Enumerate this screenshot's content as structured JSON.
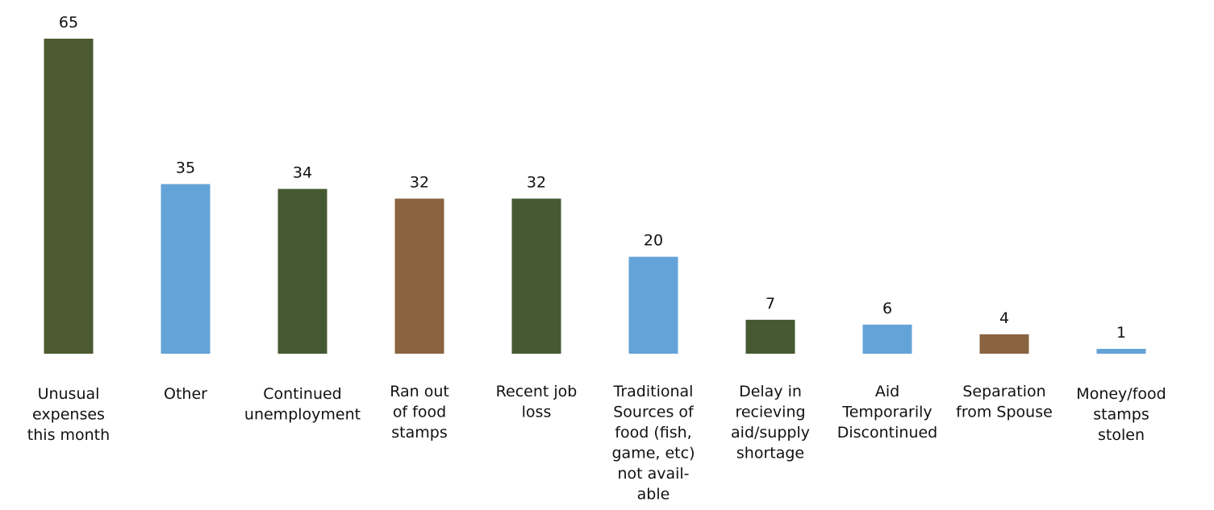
{
  "chart_data": {
    "type": "bar",
    "title": "",
    "xlabel": "",
    "ylabel": "",
    "ylim": [
      0,
      65
    ],
    "grid": false,
    "legend": "none",
    "categories": [
      "Unusual expenses this month",
      "Other",
      "Continued unemployment",
      "Ran out of food stamps",
      "Recent job loss",
      "Traditional Sources of food (fish, game, etc) not avail-able",
      "Delay in recieving aid/supply shortage",
      "Aid Temporarily Discontinued",
      "Separation from Spouse",
      "Money/food stamps stolen"
    ],
    "category_label_lines": [
      [
        "Unusual",
        "expenses",
        "this month"
      ],
      [
        "Other"
      ],
      [
        "Continued",
        "unemployment"
      ],
      [
        "Ran out",
        "of food",
        "stamps"
      ],
      [
        "Recent job",
        "loss"
      ],
      [
        "Traditional",
        "Sources of",
        "food (fish,",
        "game, etc)",
        "not avail-",
        "able"
      ],
      [
        "Delay in",
        "recieving",
        "aid/supply",
        "shortage"
      ],
      [
        "Aid",
        "Temporarily",
        "Discontinued"
      ],
      [
        "Separation",
        "from Spouse"
      ],
      [
        "Money/food",
        "stamps",
        "stolen"
      ]
    ],
    "values": [
      65,
      35,
      34,
      32,
      32,
      20,
      7,
      6,
      4,
      1
    ],
    "value_labels": [
      "65",
      "35",
      "34",
      "32",
      "32",
      "20",
      "7",
      "6",
      "4",
      "1"
    ],
    "bar_colors": [
      "#4b5a31",
      "#64a3d8",
      "#455a31",
      "#8a6440",
      "#455a31",
      "#64a3d8",
      "#455a31",
      "#64a3d8",
      "#8a6440",
      "#64a3d8"
    ]
  }
}
